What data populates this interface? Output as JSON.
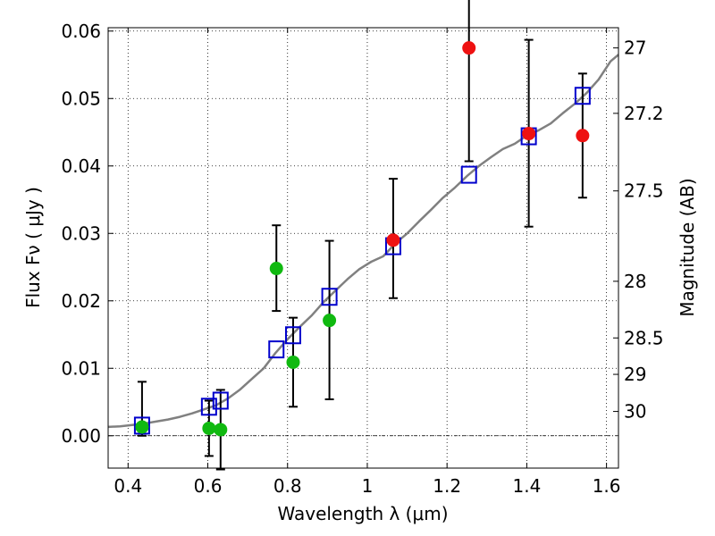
{
  "chart_data": {
    "type": "scatter",
    "xlabel": "Wavelength  λ (μm)",
    "ylabel": "Flux  Fν  ( μJy )",
    "ylabel_right": "Magnitude (AB)",
    "xlim": [
      0.35,
      1.63
    ],
    "ylim": [
      -0.0048,
      0.0605
    ],
    "x_ticks": [
      0.4,
      0.6,
      0.8,
      1.0,
      1.2,
      1.4,
      1.6
    ],
    "x_tick_labels": [
      "0.4",
      "0.6",
      "0.8",
      "1",
      "1.2",
      "1.4",
      "1.6"
    ],
    "y_ticks": [
      0.0,
      0.01,
      0.02,
      0.03,
      0.04,
      0.05,
      0.06
    ],
    "y_tick_labels": [
      "0.00",
      "0.01",
      "0.02",
      "0.03",
      "0.04",
      "0.05",
      "0.06"
    ],
    "right_axis_ticks": [
      {
        "label": "27",
        "flux": 0.0575
      },
      {
        "label": "27.2",
        "flux": 0.0478
      },
      {
        "label": "27.5",
        "flux": 0.0363
      },
      {
        "label": "28",
        "flux": 0.0229
      },
      {
        "label": "28.5",
        "flux": 0.0145
      },
      {
        "label": "29",
        "flux": 0.0091
      },
      {
        "label": "30",
        "flux": 0.0036
      }
    ],
    "grid": true,
    "grid_style": "dotted",
    "zero_line": true,
    "colors": {
      "optical_points": "#10b910",
      "nir_points": "#ee1111",
      "model_points": "#0000cc",
      "model_spectrum": "#808080",
      "error_bars": "#000000"
    },
    "series": [
      {
        "kind": "model_spectrum_line",
        "x": [
          0.35,
          0.38,
          0.41,
          0.44,
          0.47,
          0.5,
          0.53,
          0.56,
          0.59,
          0.62,
          0.65,
          0.68,
          0.71,
          0.74,
          0.77,
          0.8,
          0.83,
          0.86,
          0.89,
          0.92,
          0.95,
          0.98,
          1.01,
          1.04,
          1.07,
          1.1,
          1.13,
          1.16,
          1.19,
          1.22,
          1.25,
          1.28,
          1.31,
          1.34,
          1.37,
          1.4,
          1.43,
          1.46,
          1.49,
          1.52,
          1.55,
          1.58,
          1.61,
          1.63
        ],
        "y": [
          0.0013,
          0.0014,
          0.0016,
          0.0018,
          0.0021,
          0.0024,
          0.0028,
          0.0033,
          0.0039,
          0.0045,
          0.0055,
          0.0068,
          0.0084,
          0.01,
          0.0123,
          0.0143,
          0.0161,
          0.0178,
          0.0198,
          0.0215,
          0.0232,
          0.0247,
          0.0258,
          0.0266,
          0.0285,
          0.03,
          0.0318,
          0.0335,
          0.0353,
          0.0368,
          0.0385,
          0.04,
          0.0413,
          0.0425,
          0.0433,
          0.0445,
          0.0453,
          0.0463,
          0.0478,
          0.0492,
          0.0508,
          0.0528,
          0.0555,
          0.0565
        ]
      },
      {
        "kind": "model_open_squares",
        "x": [
          0.435,
          0.603,
          0.632,
          0.772,
          0.814,
          0.905,
          1.065,
          1.255,
          1.405,
          1.54
        ],
        "y": [
          0.0015,
          0.0043,
          0.0052,
          0.0128,
          0.0149,
          0.0206,
          0.0281,
          0.0387,
          0.0444,
          0.0504
        ]
      },
      {
        "kind": "observed_green",
        "x": [
          0.435,
          0.603,
          0.632,
          0.772,
          0.814,
          0.905
        ],
        "y": [
          0.0013,
          0.0011,
          0.0009,
          0.0248,
          0.0109,
          0.0171
        ],
        "err_low": [
          0.0013,
          0.0041,
          0.0059,
          0.0063,
          0.0066,
          0.0117
        ],
        "err_high": [
          0.0067,
          0.0041,
          0.0059,
          0.0064,
          0.0066,
          0.0118
        ]
      },
      {
        "kind": "observed_red",
        "x": [
          1.065,
          1.255,
          1.405,
          1.54
        ],
        "y": [
          0.029,
          0.0575,
          0.0448,
          0.0445
        ],
        "err_low": [
          0.0086,
          0.0168,
          0.0138,
          0.0092
        ],
        "err_high": [
          0.0091,
          0.0168,
          0.0139,
          0.0092
        ]
      }
    ]
  }
}
